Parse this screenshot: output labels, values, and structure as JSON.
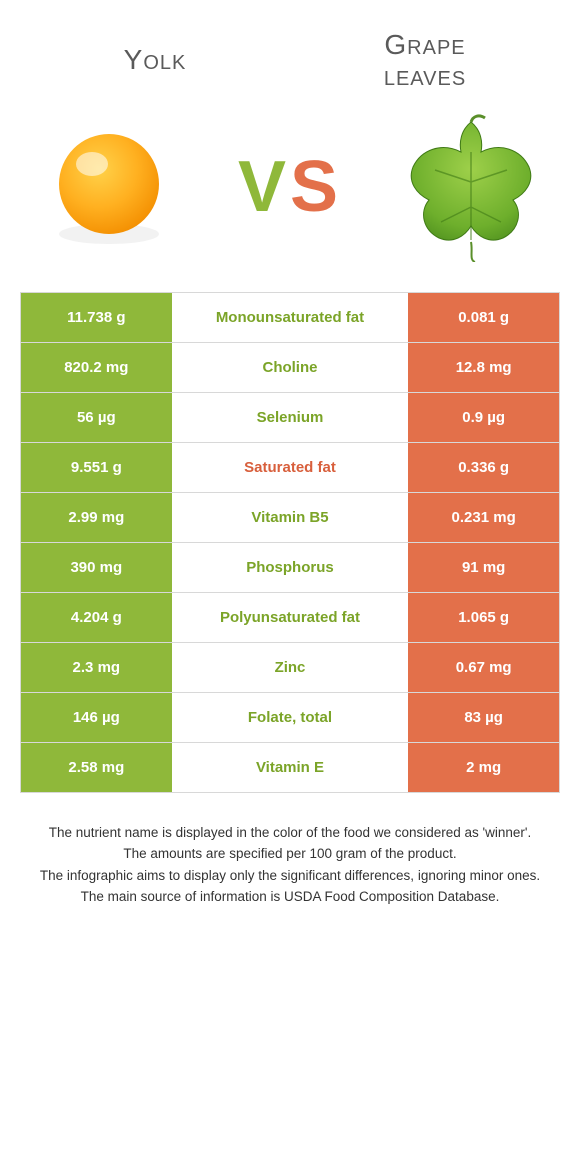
{
  "colors": {
    "green": "#8fb83a",
    "orange": "#e3704a",
    "midText_green": "#7ba428",
    "midText_orange": "#d85f3c",
    "white": "#ffffff",
    "border": "#d8d8d8"
  },
  "header": {
    "left": "Yolk",
    "right": "Grape\nleaves",
    "vs_v": "V",
    "vs_s": "S"
  },
  "rows": [
    {
      "left": "11.738 g",
      "mid": "Monounsaturated fat",
      "right": "0.081 g",
      "winner": "left"
    },
    {
      "left": "820.2 mg",
      "mid": "Choline",
      "right": "12.8 mg",
      "winner": "left"
    },
    {
      "left": "56 µg",
      "mid": "Selenium",
      "right": "0.9 µg",
      "winner": "left"
    },
    {
      "left": "9.551 g",
      "mid": "Saturated fat",
      "right": "0.336 g",
      "winner": "right"
    },
    {
      "left": "2.99 mg",
      "mid": "Vitamin B5",
      "right": "0.231 mg",
      "winner": "left"
    },
    {
      "left": "390 mg",
      "mid": "Phosphorus",
      "right": "91 mg",
      "winner": "left"
    },
    {
      "left": "4.204 g",
      "mid": "Polyunsaturated fat",
      "right": "1.065 g",
      "winner": "left"
    },
    {
      "left": "2.3 mg",
      "mid": "Zinc",
      "right": "0.67 mg",
      "winner": "left"
    },
    {
      "left": "146 µg",
      "mid": "Folate, total",
      "right": "83 µg",
      "winner": "left"
    },
    {
      "left": "2.58 mg",
      "mid": "Vitamin E",
      "right": "2 mg",
      "winner": "left"
    }
  ],
  "footer": [
    "The nutrient name is displayed in the color of the food we considered as 'winner'.",
    "The amounts are specified per 100 gram of the product.",
    "The infographic aims to display only the significant differences, ignoring minor ones.",
    "The main source of information is USDA Food Composition Database."
  ]
}
